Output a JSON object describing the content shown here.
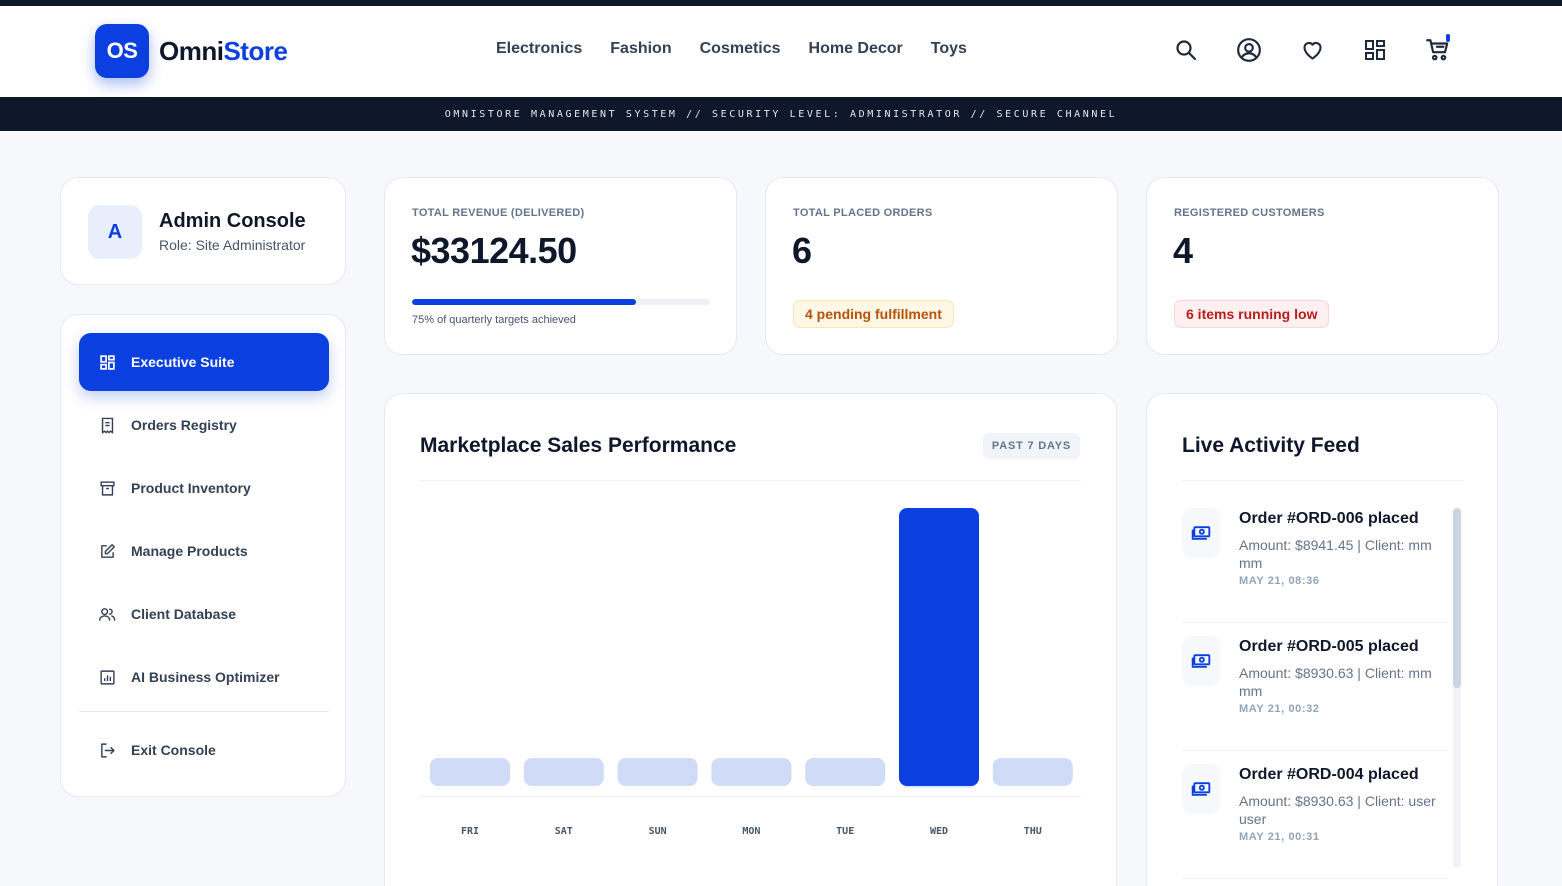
{
  "brand": {
    "badge": "OS",
    "name_part1": "Omni",
    "name_part2": "Store"
  },
  "nav": {
    "categories": [
      "Electronics",
      "Fashion",
      "Cosmetics",
      "Home Decor",
      "Toys"
    ],
    "icons": [
      "search-icon",
      "account-icon",
      "heart-icon",
      "grid-icon",
      "cart-icon"
    ]
  },
  "security_banner": "OMNISTORE MANAGEMENT SYSTEM // SECURITY LEVEL: ADMINISTRATOR // SECURE CHANNEL",
  "profile": {
    "avatar_letter": "A",
    "name": "Admin Console",
    "role": "Role: Site Administrator"
  },
  "sidebar": {
    "items": [
      {
        "label": "Executive Suite",
        "icon": "dashboard-icon",
        "active": true
      },
      {
        "label": "Orders Registry",
        "icon": "receipt-icon",
        "active": false
      },
      {
        "label": "Product Inventory",
        "icon": "archive-icon",
        "active": false
      },
      {
        "label": "Manage Products",
        "icon": "edit-icon",
        "active": false
      },
      {
        "label": "Client Database",
        "icon": "users-icon",
        "active": false
      },
      {
        "label": "AI Business Optimizer",
        "icon": "chart-icon",
        "active": false
      }
    ],
    "exit": {
      "label": "Exit Console",
      "icon": "logout-icon"
    }
  },
  "stats": {
    "revenue": {
      "label": "TOTAL REVENUE (DELIVERED)",
      "value": "$33124.50",
      "progress_percent": 75,
      "progress_note": "75% of quarterly targets achieved"
    },
    "orders": {
      "label": "TOTAL PLACED ORDERS",
      "value": "6",
      "pill": "4 pending fulfillment"
    },
    "customers": {
      "label": "REGISTERED CUSTOMERS",
      "value": "4",
      "pill": "6 items running low"
    }
  },
  "sales_chart": {
    "title": "Marketplace Sales Performance",
    "badge": "PAST 7 DAYS"
  },
  "chart_data": {
    "type": "bar",
    "categories": [
      "FRI",
      "SAT",
      "SUN",
      "MON",
      "TUE",
      "WED",
      "THU"
    ],
    "values": [
      0,
      0,
      0,
      0,
      0,
      33124.5,
      0
    ],
    "highlight_index": 5,
    "colors": {
      "bar": "#d0dcf7",
      "highlight": "#0b3fe0"
    }
  },
  "feed": {
    "title": "Live Activity Feed",
    "items": [
      {
        "title": "Order #ORD-006 placed",
        "desc": "Amount: $8941.45 | Client: mm mm",
        "time": "MAY 21, 08:36",
        "icon": "cash-icon"
      },
      {
        "title": "Order #ORD-005 placed",
        "desc": "Amount: $8930.63 | Client: mm mm",
        "time": "MAY 21, 00:32",
        "icon": "cash-icon"
      },
      {
        "title": "Order #ORD-004 placed",
        "desc": "Amount: $8930.63 | Client: user user",
        "time": "MAY 21, 00:31",
        "icon": "cash-icon"
      }
    ]
  },
  "colors": {
    "accent": "#0b3fe0",
    "dark": "#0f172a"
  }
}
